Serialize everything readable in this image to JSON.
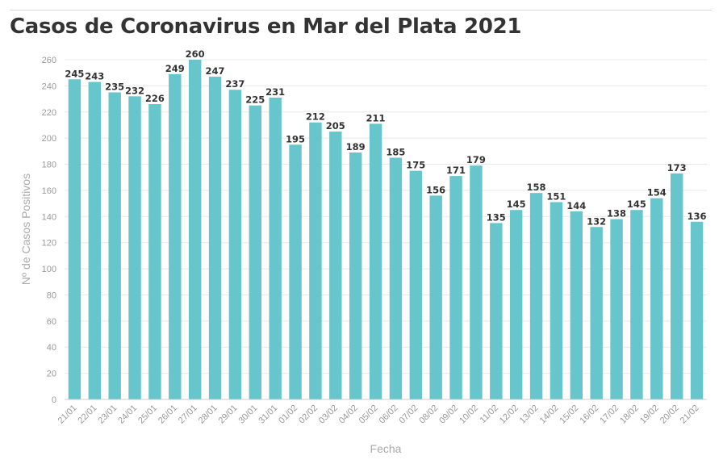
{
  "title": "Casos de Coronavirus en Mar del Plata 2021",
  "chart_data": {
    "type": "bar",
    "title": "Casos de Coronavirus en Mar del Plata 2021",
    "xlabel": "Fecha",
    "ylabel": "Nº de Casos Positivos",
    "ylim": [
      0,
      260
    ],
    "yticks": [
      0,
      20,
      40,
      60,
      80,
      100,
      120,
      140,
      160,
      180,
      200,
      220,
      240,
      260
    ],
    "grid": true,
    "bar_color": "#67c5cc",
    "categories": [
      "21/01",
      "22/01",
      "23/01",
      "24/01",
      "25/01",
      "26/01",
      "27/01",
      "28/01",
      "29/01",
      "30/01",
      "31/01",
      "01/02",
      "02/02",
      "03/02",
      "04/02",
      "05/02",
      "06/02",
      "07/02",
      "08/02",
      "09/02",
      "10/02",
      "11/02",
      "12/02",
      "13/02",
      "14/02",
      "15/02",
      "16/02",
      "17/02",
      "18/02",
      "19/02",
      "20/02",
      "21/02"
    ],
    "values": [
      245,
      243,
      235,
      232,
      226,
      249,
      260,
      247,
      237,
      225,
      231,
      195,
      212,
      205,
      189,
      211,
      185,
      175,
      156,
      171,
      179,
      135,
      145,
      158,
      151,
      144,
      132,
      138,
      145,
      154,
      173,
      136
    ]
  }
}
